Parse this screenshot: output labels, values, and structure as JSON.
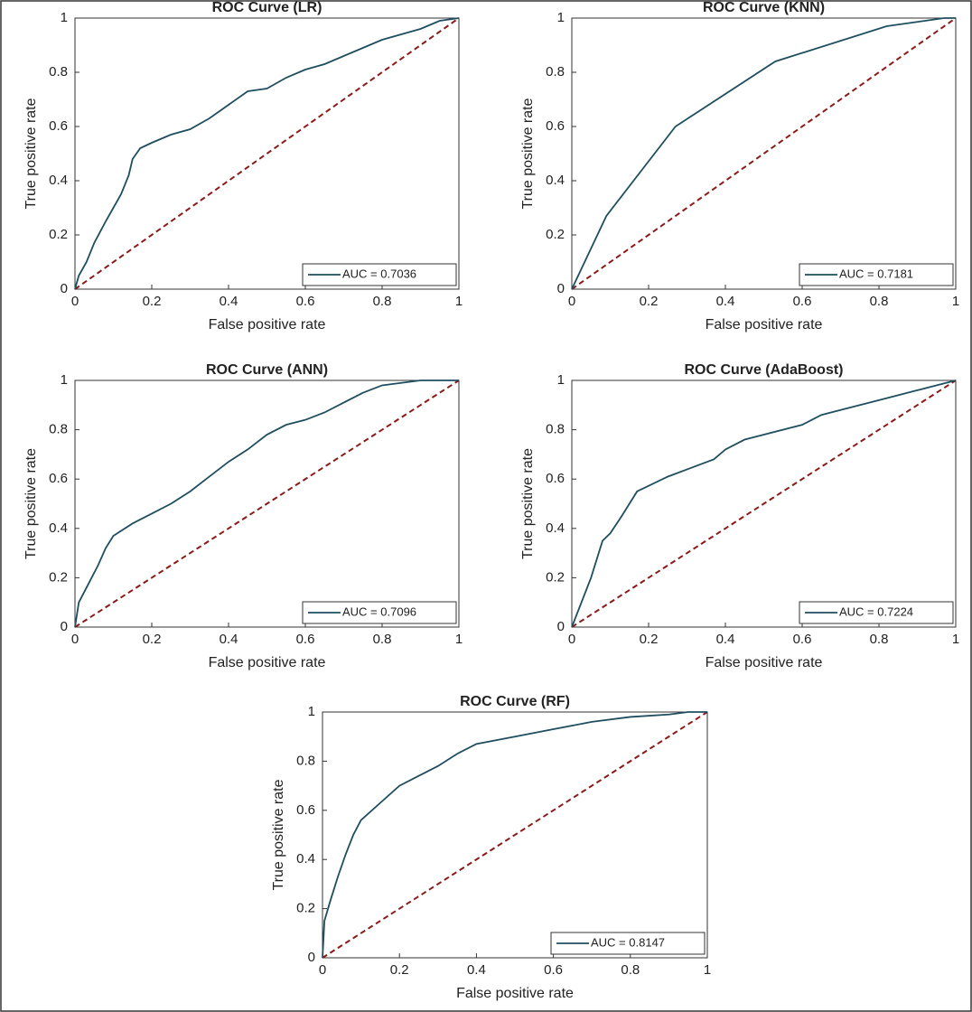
{
  "chart_data": [
    {
      "type": "line",
      "title": "ROC Curve (LR)",
      "xlabel": "False positive rate",
      "ylabel": "True positive rate",
      "xlim": [
        0,
        1
      ],
      "ylim": [
        0,
        1
      ],
      "xticks": [
        0,
        0.2,
        0.4,
        0.6,
        0.8,
        1
      ],
      "yticks": [
        0,
        0.2,
        0.4,
        0.6,
        0.8,
        1
      ],
      "legend": "lower right",
      "x": [
        0,
        0.01,
        0.03,
        0.05,
        0.08,
        0.1,
        0.12,
        0.14,
        0.15,
        0.17,
        0.2,
        0.25,
        0.3,
        0.35,
        0.4,
        0.45,
        0.5,
        0.55,
        0.6,
        0.65,
        0.7,
        0.75,
        0.8,
        0.85,
        0.9,
        0.95,
        1
      ],
      "series": [
        {
          "name": "AUC = 0.7036",
          "color": "#1f4e5f",
          "values": [
            0,
            0.05,
            0.1,
            0.17,
            0.25,
            0.3,
            0.35,
            0.42,
            0.48,
            0.52,
            0.54,
            0.57,
            0.59,
            0.63,
            0.68,
            0.73,
            0.74,
            0.78,
            0.81,
            0.83,
            0.86,
            0.89,
            0.92,
            0.94,
            0.96,
            0.99,
            1
          ]
        }
      ],
      "diagonal": {
        "x": [
          0,
          1
        ],
        "y": [
          0,
          1
        ],
        "color": "#8b1a1a"
      }
    },
    {
      "type": "line",
      "title": "ROC Curve (KNN)",
      "xlabel": "False positive rate",
      "ylabel": "True positive rate",
      "xlim": [
        0,
        1
      ],
      "ylim": [
        0,
        1
      ],
      "xticks": [
        0,
        0.2,
        0.4,
        0.6,
        0.8,
        1
      ],
      "yticks": [
        0,
        0.2,
        0.4,
        0.6,
        0.8,
        1
      ],
      "legend": "lower right",
      "x": [
        0,
        0.02,
        0.09,
        0.27,
        0.53,
        0.82,
        0.97,
        1
      ],
      "series": [
        {
          "name": "AUC = 0.7181",
          "color": "#1f4e5f",
          "values": [
            0,
            0.06,
            0.27,
            0.6,
            0.84,
            0.97,
            1,
            1
          ]
        }
      ],
      "diagonal": {
        "x": [
          0,
          1
        ],
        "y": [
          0,
          1
        ],
        "color": "#8b1a1a"
      }
    },
    {
      "type": "line",
      "title": "ROC Curve (ANN)",
      "xlabel": "False positive rate",
      "ylabel": "True positive rate",
      "xlim": [
        0,
        1
      ],
      "ylim": [
        0,
        1
      ],
      "xticks": [
        0,
        0.2,
        0.4,
        0.6,
        0.8,
        1
      ],
      "yticks": [
        0,
        0.2,
        0.4,
        0.6,
        0.8,
        1
      ],
      "legend": "lower right",
      "x": [
        0,
        0.01,
        0.03,
        0.06,
        0.08,
        0.1,
        0.15,
        0.2,
        0.25,
        0.3,
        0.35,
        0.4,
        0.45,
        0.5,
        0.55,
        0.6,
        0.65,
        0.7,
        0.75,
        0.8,
        0.85,
        0.9,
        1
      ],
      "series": [
        {
          "name": "AUC = 0.7096",
          "color": "#1f4e5f",
          "values": [
            0,
            0.1,
            0.16,
            0.25,
            0.32,
            0.37,
            0.42,
            0.46,
            0.5,
            0.55,
            0.61,
            0.67,
            0.72,
            0.78,
            0.82,
            0.84,
            0.87,
            0.91,
            0.95,
            0.98,
            0.99,
            1,
            1
          ]
        }
      ],
      "diagonal": {
        "x": [
          0,
          1
        ],
        "y": [
          0,
          1
        ],
        "color": "#8b1a1a"
      }
    },
    {
      "type": "line",
      "title": "ROC Curve (AdaBoost)",
      "xlabel": "False positive rate",
      "ylabel": "True positive rate",
      "xlim": [
        0,
        1
      ],
      "ylim": [
        0,
        1
      ],
      "xticks": [
        0,
        0.2,
        0.4,
        0.6,
        0.8,
        1
      ],
      "yticks": [
        0,
        0.2,
        0.4,
        0.6,
        0.8,
        1
      ],
      "legend": "lower right",
      "x": [
        0,
        0.05,
        0.08,
        0.1,
        0.13,
        0.17,
        0.25,
        0.37,
        0.4,
        0.45,
        0.6,
        0.65,
        0.7,
        0.8,
        0.9,
        1
      ],
      "series": [
        {
          "name": "AUC = 0.7224",
          "color": "#1f4e5f",
          "values": [
            0,
            0.2,
            0.35,
            0.38,
            0.45,
            0.55,
            0.61,
            0.68,
            0.72,
            0.76,
            0.82,
            0.86,
            0.88,
            0.92,
            0.96,
            1
          ]
        }
      ],
      "diagonal": {
        "x": [
          0,
          1
        ],
        "y": [
          0,
          1
        ],
        "color": "#8b1a1a"
      }
    },
    {
      "type": "line",
      "title": "ROC Curve (RF)",
      "xlabel": "False positive rate",
      "ylabel": "True positive rate",
      "xlim": [
        0,
        1
      ],
      "ylim": [
        0,
        1
      ],
      "xticks": [
        0,
        0.2,
        0.4,
        0.6,
        0.8,
        1
      ],
      "yticks": [
        0,
        0.2,
        0.4,
        0.6,
        0.8,
        1
      ],
      "legend": "lower right",
      "x": [
        0,
        0.005,
        0.02,
        0.04,
        0.06,
        0.08,
        0.1,
        0.15,
        0.2,
        0.25,
        0.3,
        0.35,
        0.4,
        0.5,
        0.6,
        0.7,
        0.8,
        0.9,
        0.95,
        1
      ],
      "series": [
        {
          "name": "AUC = 0.8147",
          "color": "#1f4e5f",
          "values": [
            0,
            0.15,
            0.23,
            0.33,
            0.42,
            0.5,
            0.56,
            0.63,
            0.7,
            0.74,
            0.78,
            0.83,
            0.87,
            0.9,
            0.93,
            0.96,
            0.98,
            0.99,
            1,
            1
          ]
        }
      ],
      "diagonal": {
        "x": [
          0,
          1
        ],
        "y": [
          0,
          1
        ],
        "color": "#8b1a1a"
      }
    }
  ]
}
